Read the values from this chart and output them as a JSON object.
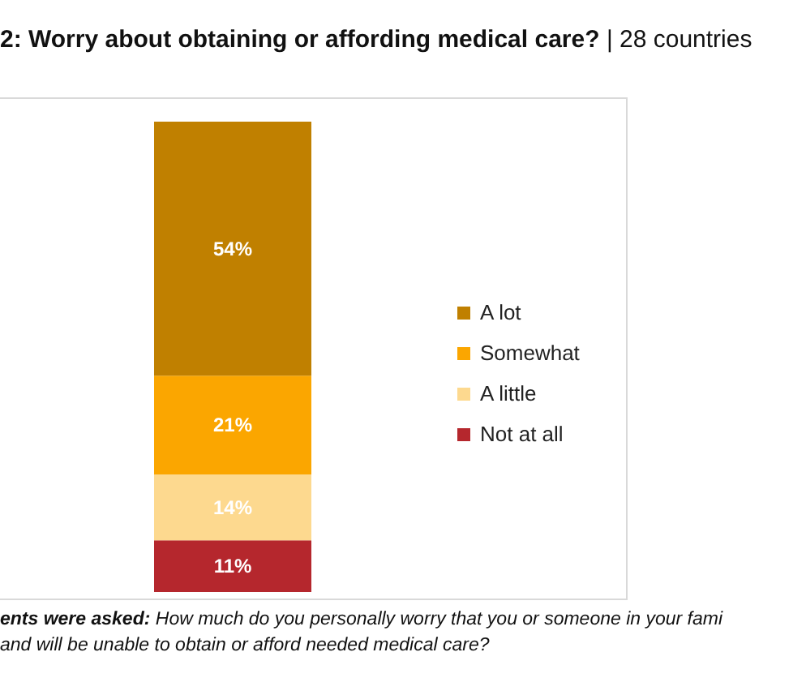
{
  "chart_data": {
    "type": "bar",
    "stacked": true,
    "title": "2: Worry about obtaining or affording medical care?",
    "subtitle": "| 28 countries",
    "categories": [
      null
    ],
    "series": [
      {
        "name": "Not at all",
        "color": "#b5272d",
        "values": [
          11
        ],
        "value_labels": [
          "11%"
        ]
      },
      {
        "name": "A little",
        "color": "#fdd98f",
        "values": [
          14
        ],
        "value_labels": [
          "14%"
        ]
      },
      {
        "name": "Somewhat",
        "color": "#fba600",
        "values": [
          21
        ],
        "value_labels": [
          "21%"
        ]
      },
      {
        "name": "A lot",
        "color": "#c08000",
        "values": [
          54
        ],
        "value_labels": [
          "54%"
        ]
      }
    ],
    "legend": "right",
    "annotations": [
      "ents were asked:",
      "How much do you personally worry that you or someone in your fami",
      "and will be unable to obtain or afford needed medical care?"
    ]
  }
}
